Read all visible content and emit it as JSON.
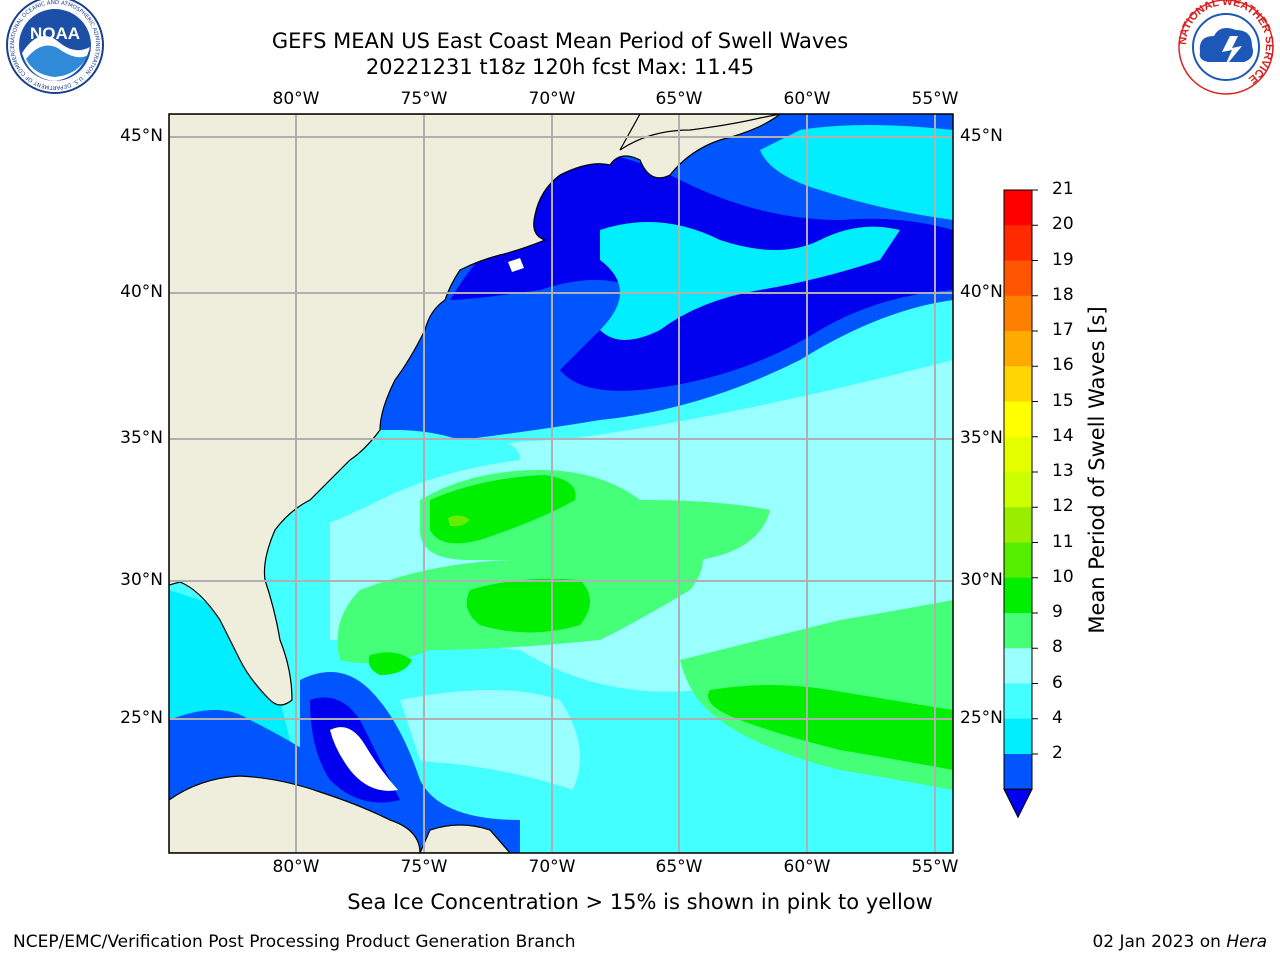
{
  "header": {
    "title_line1": "GEFS MEAN US East Coast Mean Period of Swell Waves",
    "title_line2": "20221231 t18z 120h fcst   Max: 11.45"
  },
  "logos": {
    "left": {
      "name": "NOAA",
      "text": "NOAA",
      "ring_text": "NATIONAL OCEANIC AND ATMOSPHERIC ADMINISTRATION · U.S. DEPARTMENT OF COMMERCE"
    },
    "right": {
      "name": "National Weather Service",
      "ring_text": "NATIONAL WEATHER SERVICE"
    }
  },
  "map": {
    "lon_labels_top": [
      "80°W",
      "75°W",
      "70°W",
      "65°W",
      "60°W",
      "55°W"
    ],
    "lon_labels_bottom": [
      "80°W",
      "75°W",
      "70°W",
      "65°W",
      "60°W",
      "55°W"
    ],
    "lat_labels_left": [
      "45°N",
      "40°N",
      "35°N",
      "30°N",
      "25°N"
    ],
    "lat_labels_right": [
      "45°N",
      "40°N",
      "35°N",
      "30°N",
      "25°N"
    ],
    "colors": {
      "land": "#efeedc",
      "c2_4": "#0055ff",
      "c0_2": "#0000ee",
      "c4_6": "#00eeff",
      "c6_8": "#44ffff",
      "c8_9": "#99ffff",
      "c9_10": "#44ff77",
      "c10_11": "#00ee00",
      "c11_12": "#66ee00",
      "grid": "#b0b0b0"
    }
  },
  "colorbar": {
    "title": "Mean Period of Swell Waves [s]",
    "ticks": [
      "21",
      "20",
      "19",
      "18",
      "17",
      "16",
      "15",
      "14",
      "13",
      "12",
      "11",
      "10",
      "9",
      "8",
      "6",
      "4",
      "2"
    ],
    "colors": [
      "#ff0000",
      "#ff2a00",
      "#ff5500",
      "#ff8000",
      "#ffaa00",
      "#ffd400",
      "#ffff00",
      "#e6ff00",
      "#ccff00",
      "#99ee00",
      "#55ee00",
      "#00ee00",
      "#44ff77",
      "#99ffff",
      "#44ffff",
      "#00eeff",
      "#0055ff"
    ],
    "extend_color": "#0000ee"
  },
  "caption": "Sea Ice Concentration > 15% is shown in pink to yellow",
  "footer": {
    "left": "NCEP/EMC/Verification Post Processing Product Generation Branch",
    "right_date": "02 Jan 2023 on ",
    "right_host": "Hera"
  }
}
